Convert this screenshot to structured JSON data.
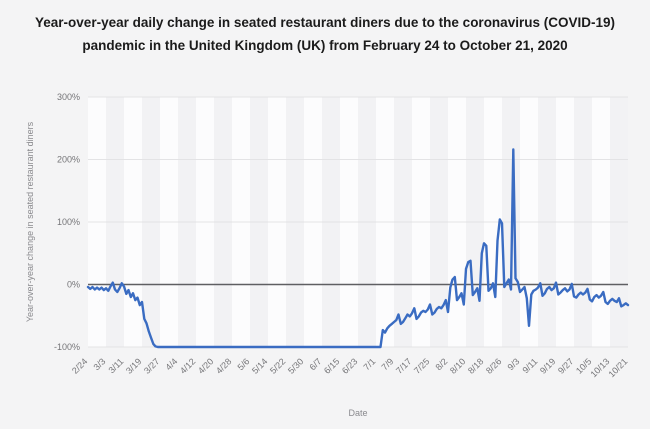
{
  "page": {
    "background_color": "#f4f4f5"
  },
  "chart_data": {
    "type": "line",
    "title": "Year-over-year daily change in seated restaurant diners due to the coronavirus (COVID-19) pandemic in the United Kingdom (UK) from February 24 to October 21, 2020",
    "xlabel": "Date",
    "ylabel": "Year-over-year change in seated restaurant diners",
    "ylim": [
      -100,
      300
    ],
    "grid": true,
    "legend": false,
    "band_colors": [
      "#fcfcfd",
      "#f2f2f4"
    ],
    "gridline_color": "#e3e3e5",
    "zero_line_color": "#5f5f62",
    "line_color": "#3a6cc2",
    "ytick_values": [
      300,
      200,
      100,
      0,
      -100
    ],
    "ytick_labels": [
      "300%",
      "200%",
      "100%",
      "0%",
      "-100%"
    ],
    "xtick_day_interval": 8,
    "xtick_labels": [
      "2/24",
      "3/3",
      "3/11",
      "3/19",
      "3/27",
      "4/4",
      "4/12",
      "4/20",
      "4/28",
      "5/6",
      "5/14",
      "5/22",
      "5/30",
      "6/7",
      "6/15",
      "6/23",
      "7/1",
      "7/9",
      "7/17",
      "7/25",
      "8/2",
      "8/10",
      "8/18",
      "8/26",
      "9/3",
      "9/11",
      "9/19",
      "9/27",
      "10/5",
      "10/13",
      "10/21"
    ],
    "series": [
      {
        "name": "Year-over-year daily change in seated restaurant diners (%)",
        "start_label": "2/24",
        "values": [
          -4,
          -7,
          -4,
          -8,
          -5,
          -8,
          -5,
          -9,
          -6,
          -10,
          -3,
          3,
          -8,
          -12,
          -6,
          2,
          -3,
          -15,
          -9,
          -20,
          -14,
          -25,
          -21,
          -33,
          -28,
          -55,
          -62,
          -75,
          -85,
          -95,
          -99,
          -100,
          -100,
          -100,
          -100,
          -100,
          -100,
          -100,
          -100,
          -100,
          -100,
          -100,
          -100,
          -100,
          -100,
          -100,
          -100,
          -100,
          -100,
          -100,
          -100,
          -100,
          -100,
          -100,
          -100,
          -100,
          -100,
          -100,
          -100,
          -100,
          -100,
          -100,
          -100,
          -100,
          -100,
          -100,
          -100,
          -100,
          -100,
          -100,
          -100,
          -100,
          -100,
          -100,
          -100,
          -100,
          -100,
          -100,
          -100,
          -100,
          -100,
          -100,
          -100,
          -100,
          -100,
          -100,
          -100,
          -100,
          -100,
          -100,
          -100,
          -100,
          -100,
          -100,
          -100,
          -100,
          -100,
          -100,
          -100,
          -100,
          -100,
          -100,
          -100,
          -100,
          -100,
          -100,
          -100,
          -100,
          -100,
          -100,
          -100,
          -100,
          -100,
          -100,
          -100,
          -100,
          -100,
          -100,
          -100,
          -100,
          -100,
          -100,
          -100,
          -100,
          -100,
          -100,
          -100,
          -100,
          -100,
          -100,
          -100,
          -73,
          -77,
          -70,
          -66,
          -63,
          -60,
          -57,
          -48,
          -63,
          -60,
          -54,
          -48,
          -51,
          -46,
          -38,
          -55,
          -51,
          -45,
          -42,
          -44,
          -40,
          -32,
          -48,
          -45,
          -39,
          -36,
          -38,
          -33,
          -25,
          -44,
          -5,
          8,
          12,
          -25,
          -20,
          -14,
          -32,
          25,
          36,
          38,
          -17,
          -12,
          -6,
          -26,
          50,
          66,
          62,
          -10,
          -6,
          2,
          -20,
          70,
          104,
          98,
          -4,
          2,
          8,
          -8,
          216,
          10,
          4,
          -12,
          -8,
          -4,
          -22,
          -66,
          -16,
          -10,
          -8,
          -5,
          2,
          -18,
          -14,
          -7,
          -4,
          -9,
          -6,
          3,
          -16,
          -13,
          -9,
          -6,
          -11,
          -8,
          1,
          -19,
          -21,
          -16,
          -13,
          -16,
          -13,
          -7,
          -24,
          -27,
          -20,
          -17,
          -21,
          -18,
          -12,
          -28,
          -31,
          -26,
          -23,
          -26,
          -28,
          -22,
          -35,
          -33,
          -30,
          -33
        ]
      }
    ]
  }
}
